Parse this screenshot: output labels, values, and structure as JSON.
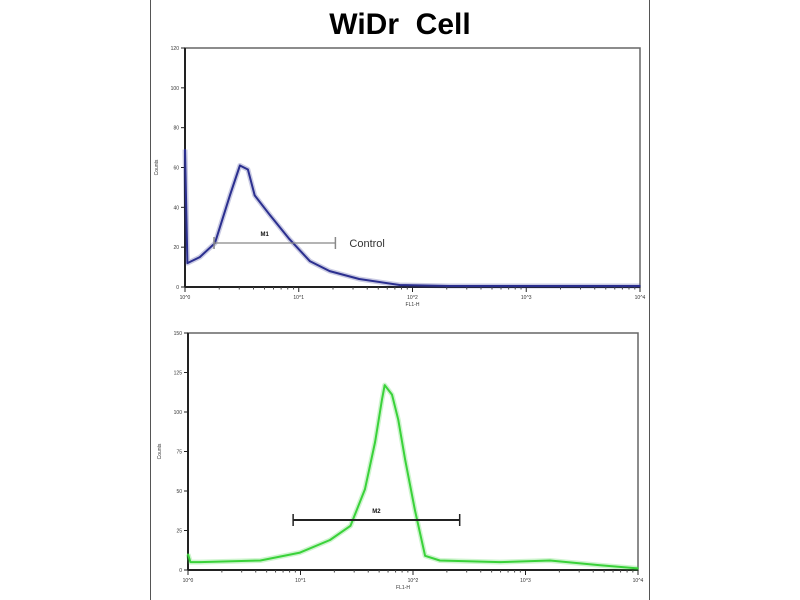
{
  "title": "WiDr  Cell",
  "chart_data": [
    {
      "type": "line",
      "xlabel": "FL1-H",
      "ylabel": "Counts",
      "xscale": "log",
      "xlim": [
        1,
        10000
      ],
      "ylim": [
        0,
        120
      ],
      "xticks": [
        "10^0",
        "10^1",
        "10^2",
        "10^3",
        "10^4"
      ],
      "yticks": [
        "0",
        "20",
        "40",
        "60",
        "80",
        "100",
        "120"
      ],
      "color": "#2b2f8f",
      "grid": false,
      "marker": {
        "label": "M1",
        "range": [
          1.8,
          21
        ]
      },
      "annotation": "Control",
      "points": [
        [
          1,
          69
        ],
        [
          1.05,
          12
        ],
        [
          1.35,
          15
        ],
        [
          1.83,
          22
        ],
        [
          2.48,
          46
        ],
        [
          3.04,
          61
        ],
        [
          3.57,
          59
        ],
        [
          4.1,
          46
        ],
        [
          5.6,
          36
        ],
        [
          8.3,
          24
        ],
        [
          12.5,
          13
        ],
        [
          18.7,
          8
        ],
        [
          34,
          4
        ],
        [
          77,
          1
        ],
        [
          211,
          0.5
        ],
        [
          870,
          0.5
        ],
        [
          10000,
          0.5
        ]
      ]
    },
    {
      "type": "line",
      "xlabel": "FL1-H",
      "ylabel": "Counts",
      "xscale": "log",
      "xlim": [
        1,
        10000
      ],
      "ylim": [
        0,
        150
      ],
      "xticks": [
        "10^0",
        "10^1",
        "10^2",
        "10^3",
        "10^4"
      ],
      "yticks": [
        "0",
        "25",
        "50",
        "75",
        "100",
        "125",
        "150"
      ],
      "color": "#3ad23a",
      "grid": false,
      "marker": {
        "label": "M2",
        "range": [
          8.6,
          260
        ]
      },
      "points": [
        [
          1,
          10
        ],
        [
          1.05,
          5
        ],
        [
          1.28,
          5
        ],
        [
          4.4,
          6
        ],
        [
          9.9,
          11
        ],
        [
          18.3,
          19
        ],
        [
          27.8,
          28
        ],
        [
          37.4,
          51
        ],
        [
          46,
          81
        ],
        [
          53,
          108
        ],
        [
          56,
          117
        ],
        [
          65,
          111
        ],
        [
          74,
          95
        ],
        [
          85,
          70
        ],
        [
          104,
          38
        ],
        [
          128,
          9
        ],
        [
          173,
          6
        ],
        [
          594,
          5
        ],
        [
          1650,
          6
        ],
        [
          4600,
          3
        ],
        [
          10000,
          1
        ]
      ]
    }
  ]
}
